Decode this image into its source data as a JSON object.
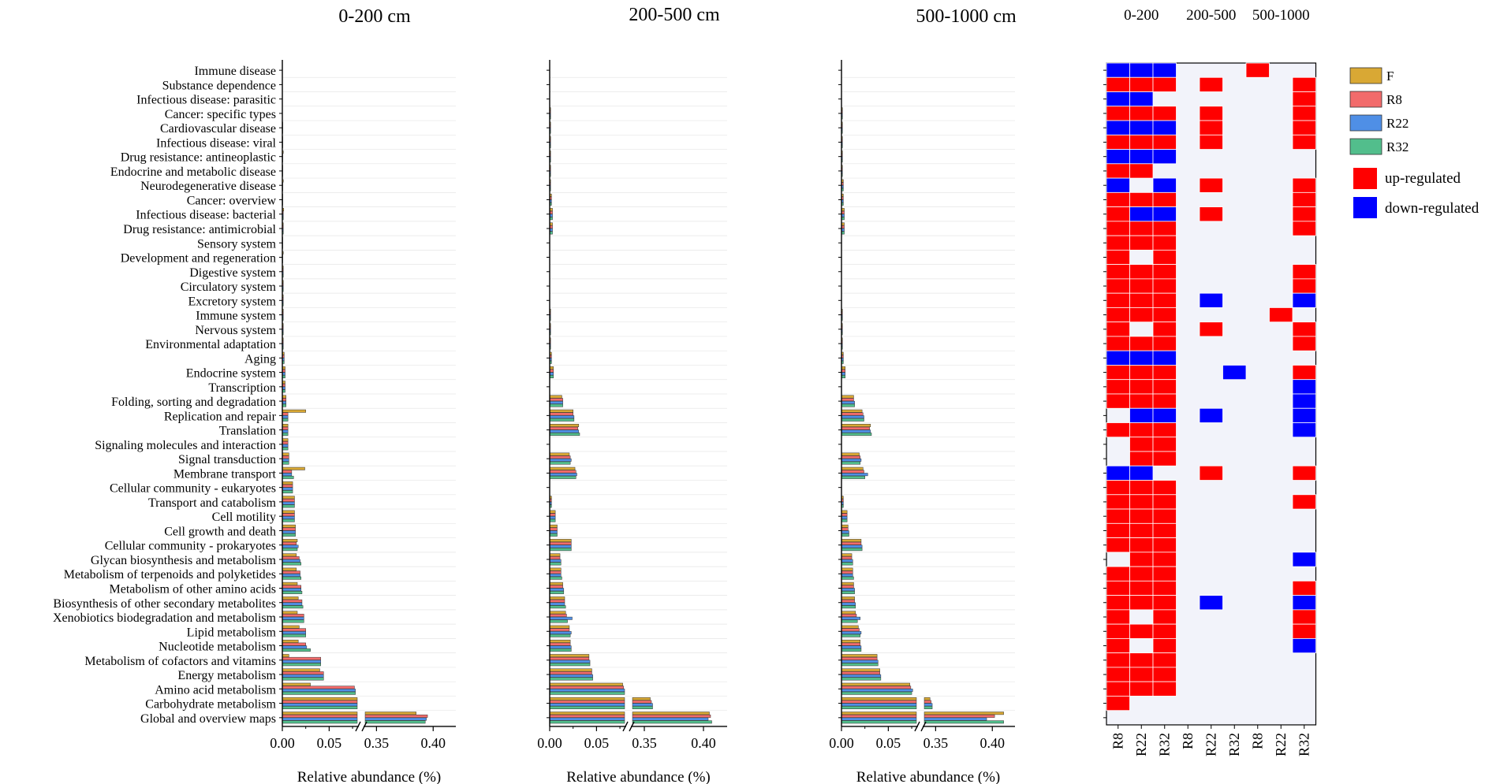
{
  "chart_data": {
    "type": "bar",
    "orientation": "horizontal",
    "categories": [
      "Immune disease",
      "Substance dependence",
      "Infectious disease: parasitic",
      "Cancer: specific types",
      "Cardiovascular disease",
      "Infectious disease: viral",
      "Drug resistance: antineoplastic",
      "Endocrine and metabolic disease",
      "Neurodegenerative disease",
      "Cancer: overview",
      "Infectious disease: bacterial",
      "Drug resistance: antimicrobial",
      "Sensory system",
      "Development and regeneration",
      "Digestive system",
      "Circulatory system",
      "Excretory system",
      "Immune system",
      "Nervous system",
      "Environmental adaptation",
      "Aging",
      "Endocrine system",
      "Transcription",
      "Folding, sorting and degradation",
      "Replication and repair",
      "Translation",
      "Signaling molecules and interaction",
      "Signal transduction",
      "Membrane transport",
      "Cellular community - eukaryotes",
      "Transport and catabolism",
      "Cell motility",
      "Cell growth and death",
      "Cellular community - prokaryotes",
      "Glycan biosynthesis and metabolism",
      "Metabolism of terpenoids and polyketides",
      "Metabolism of other amino acids",
      "Biosynthesis of other secondary metabolites",
      "Xenobiotics biodegradation and metabolism",
      "Lipid metabolism",
      "Nucleotide metabolism",
      "Metabolism of cofactors and vitamins",
      "Energy metabolism",
      "Amino acid metabolism",
      "Carbohydrate metabolism",
      "Global and overview maps"
    ],
    "xlabel": "Relative abundance (%)",
    "broken_axis": {
      "lower_range": [
        0,
        0.08
      ],
      "upper_range": [
        0.34,
        0.42
      ],
      "lower_ticks": [
        "0.00",
        "0.05"
      ],
      "upper_ticks": [
        "0.35",
        "0.40"
      ]
    },
    "series_names": [
      "F",
      "R8",
      "R22",
      "R32"
    ],
    "series_colors": [
      "#D9A834",
      "#F26B6B",
      "#4F8FE6",
      "#52BE8C"
    ],
    "panels": [
      {
        "title": "0-200 cm",
        "values": {
          "F": [
            0,
            0,
            0,
            0,
            0.0005,
            0.0005,
            0.001,
            0.0005,
            0.001,
            0.0005,
            0.0015,
            0.001,
            0.0005,
            0.001,
            0.001,
            0.001,
            0.001,
            0.001,
            0.001,
            0.001,
            0.002,
            0.003,
            0.003,
            0.004,
            0.025,
            0.006,
            0.006,
            0.007,
            0.024,
            0.011,
            0.013,
            0.013,
            0.014,
            0.016,
            0.015,
            0.015,
            0.016,
            0.017,
            0.016,
            0.018,
            0.017,
            0.007,
            0.04,
            0.03,
            0.33,
            0.385
          ],
          "R8": [
            0,
            0,
            0,
            0,
            0.0005,
            0.0005,
            0.0005,
            0.0005,
            0.0005,
            0.0005,
            0.001,
            0.001,
            0.0005,
            0.0005,
            0.001,
            0.001,
            0.001,
            0.001,
            0.001,
            0.001,
            0.002,
            0.003,
            0.003,
            0.004,
            0.006,
            0.006,
            0.006,
            0.007,
            0.01,
            0.011,
            0.013,
            0.013,
            0.014,
            0.015,
            0.018,
            0.019,
            0.02,
            0.021,
            0.023,
            0.025,
            0.025,
            0.041,
            0.044,
            0.077,
            0.335,
            0.395
          ],
          "R22": [
            0,
            0,
            0,
            0,
            0.0005,
            0.0005,
            0.0005,
            0.0005,
            0.0005,
            0.0005,
            0.001,
            0.001,
            0.0005,
            0.0005,
            0.001,
            0.001,
            0.001,
            0.001,
            0.001,
            0.001,
            0.002,
            0.003,
            0.003,
            0.004,
            0.006,
            0.006,
            0.006,
            0.007,
            0.01,
            0.011,
            0.013,
            0.013,
            0.014,
            0.017,
            0.019,
            0.019,
            0.02,
            0.021,
            0.023,
            0.025,
            0.026,
            0.041,
            0.044,
            0.078,
            0.336,
            0.394
          ],
          "R32": [
            0,
            0,
            0,
            0,
            0.0005,
            0.0005,
            0.0005,
            0.0005,
            0.0005,
            0.0005,
            0.001,
            0.001,
            0.0005,
            0.0005,
            0.001,
            0.001,
            0.001,
            0.001,
            0.001,
            0.001,
            0.002,
            0.003,
            0.003,
            0.004,
            0.006,
            0.006,
            0.006,
            0.007,
            0.012,
            0.011,
            0.013,
            0.013,
            0.014,
            0.016,
            0.02,
            0.02,
            0.021,
            0.022,
            0.023,
            0.025,
            0.03,
            0.041,
            0.044,
            0.078,
            0.337,
            0.393
          ]
        }
      },
      {
        "title": "200-500 cm",
        "values": {
          "F": [
            0,
            0,
            0,
            0.001,
            0.001,
            0.001,
            0.001,
            0.001,
            0.001,
            0.002,
            0.003,
            0.003,
            0,
            0,
            0,
            0,
            0,
            0.001,
            0.001,
            0.001,
            0.002,
            0.004,
            0,
            0.013,
            0.025,
            0.031,
            0,
            0.021,
            0.027,
            0,
            0.002,
            0.006,
            0.008,
            0.023,
            0.011,
            0.012,
            0.014,
            0.016,
            0.017,
            0.021,
            0.022,
            0.042,
            0.045,
            0.078,
            0.355,
            0.405
          ],
          "R8": [
            0,
            0,
            0,
            0.001,
            0.001,
            0.001,
            0.001,
            0.001,
            0.001,
            0.002,
            0.003,
            0.003,
            0,
            0,
            0,
            0,
            0,
            0.001,
            0.001,
            0.001,
            0.002,
            0.004,
            0,
            0.014,
            0.025,
            0.03,
            0,
            0.022,
            0.028,
            0,
            0.002,
            0.006,
            0.008,
            0.023,
            0.011,
            0.012,
            0.014,
            0.016,
            0.018,
            0.021,
            0.022,
            0.042,
            0.045,
            0.079,
            0.356,
            0.406
          ],
          "R22": [
            0,
            0,
            0,
            0.001,
            0.001,
            0.001,
            0.001,
            0.001,
            0.001,
            0.002,
            0.003,
            0.003,
            0,
            0,
            0,
            0,
            0,
            0.001,
            0.001,
            0.001,
            0.002,
            0.004,
            0,
            0.014,
            0.026,
            0.031,
            0,
            0.023,
            0.029,
            0,
            0.002,
            0.006,
            0.008,
            0.023,
            0.012,
            0.012,
            0.015,
            0.016,
            0.024,
            0.023,
            0.023,
            0.043,
            0.046,
            0.081,
            0.357,
            0.404
          ],
          "R32": [
            0,
            0,
            0,
            0.001,
            0.001,
            0.001,
            0.001,
            0.001,
            0.001,
            0.002,
            0.003,
            0.003,
            0,
            0,
            0,
            0,
            0,
            0.001,
            0.001,
            0.001,
            0.002,
            0.004,
            0,
            0.014,
            0.026,
            0.032,
            0,
            0.022,
            0.028,
            0,
            0.002,
            0.006,
            0.008,
            0.023,
            0.012,
            0.013,
            0.015,
            0.017,
            0.019,
            0.022,
            0.023,
            0.043,
            0.046,
            0.08,
            0.357,
            0.407
          ]
        }
      },
      {
        "title": "500-1000 cm",
        "values": {
          "F": [
            0,
            0,
            0,
            0.001,
            0.001,
            0.001,
            0.001,
            0.001,
            0.002,
            0.002,
            0.003,
            0.003,
            0,
            0,
            0,
            0,
            0,
            0.001,
            0.001,
            0.001,
            0.002,
            0.004,
            0,
            0.013,
            0.022,
            0.031,
            0,
            0.019,
            0.023,
            0,
            0.002,
            0.006,
            0.007,
            0.021,
            0.011,
            0.012,
            0.013,
            0.014,
            0.015,
            0.018,
            0.02,
            0.038,
            0.041,
            0.073,
            0.345,
            0.41
          ],
          "R8": [
            0,
            0,
            0,
            0.001,
            0.001,
            0.001,
            0.001,
            0.001,
            0.002,
            0.002,
            0.003,
            0.003,
            0,
            0,
            0,
            0,
            0,
            0.001,
            0.001,
            0.001,
            0.002,
            0.004,
            0,
            0.013,
            0.023,
            0.03,
            0,
            0.02,
            0.024,
            0,
            0.002,
            0.006,
            0.007,
            0.021,
            0.011,
            0.012,
            0.013,
            0.014,
            0.016,
            0.019,
            0.02,
            0.038,
            0.041,
            0.074,
            0.346,
            0.402
          ],
          "R22": [
            0,
            0,
            0,
            0.001,
            0.001,
            0.001,
            0.001,
            0.001,
            0.002,
            0.002,
            0.003,
            0.003,
            0,
            0,
            0,
            0,
            0,
            0.001,
            0.001,
            0.001,
            0.002,
            0.004,
            0,
            0.014,
            0.024,
            0.031,
            0,
            0.021,
            0.028,
            0,
            0.002,
            0.006,
            0.008,
            0.022,
            0.012,
            0.012,
            0.014,
            0.015,
            0.02,
            0.021,
            0.021,
            0.039,
            0.042,
            0.076,
            0.347,
            0.395
          ],
          "R32": [
            0,
            0,
            0,
            0.001,
            0.001,
            0.001,
            0.001,
            0.001,
            0.002,
            0.002,
            0.003,
            0.003,
            0,
            0,
            0,
            0,
            0,
            0.001,
            0.001,
            0.001,
            0.002,
            0.004,
            0,
            0.014,
            0.024,
            0.032,
            0,
            0.02,
            0.025,
            0,
            0.002,
            0.006,
            0.008,
            0.022,
            0.012,
            0.013,
            0.014,
            0.015,
            0.017,
            0.02,
            0.021,
            0.039,
            0.042,
            0.075,
            0.347,
            0.41
          ]
        }
      }
    ],
    "heatmap": {
      "group_labels": [
        "0-200",
        "200-500",
        "500-1000"
      ],
      "column_labels": [
        "R8",
        "R22",
        "R32",
        "R8",
        "R22",
        "R32",
        "R8",
        "R22",
        "R32"
      ],
      "legend": {
        "up": "up-regulated",
        "down": "down-regulated"
      },
      "color_up": "#FF0000",
      "color_down": "#0000FF",
      "color_none": "#F2F3FA",
      "cells": [
        "ddd000u00",
        "uuu0u000u",
        "dd000000u",
        "uuu0u000u",
        "ddd0u000u",
        "uuu0u000u",
        "ddd000000",
        "uu0000000",
        "d0d0u000u",
        "uuu00000u",
        "udd0u000u",
        "uuu00000u",
        "uuu000000",
        "u0u000000",
        "uuu00000u",
        "uuu00000u",
        "uuu0d000d",
        "uuu0000u0",
        "u0u0u000u",
        "uuu00000u",
        "ddd000000",
        "uuu00d00u",
        "uuu00000d",
        "uuu00000d",
        "0dd0d000d",
        "uuu00000d",
        "0uu000000",
        "0uu000000",
        "dd00u000u",
        "uuu000000",
        "uuu00000u",
        "uuu000000",
        "uuu000000",
        "uuu000000",
        "0uu00000d",
        "uuu000000",
        "uuu00000u",
        "uuu0d000d",
        "u0u00000u",
        "uuu00000u",
        "u0u00000d",
        "uuu000000",
        "uuu000000",
        "uuu000000",
        "u00000000",
        "000000000"
      ]
    }
  }
}
